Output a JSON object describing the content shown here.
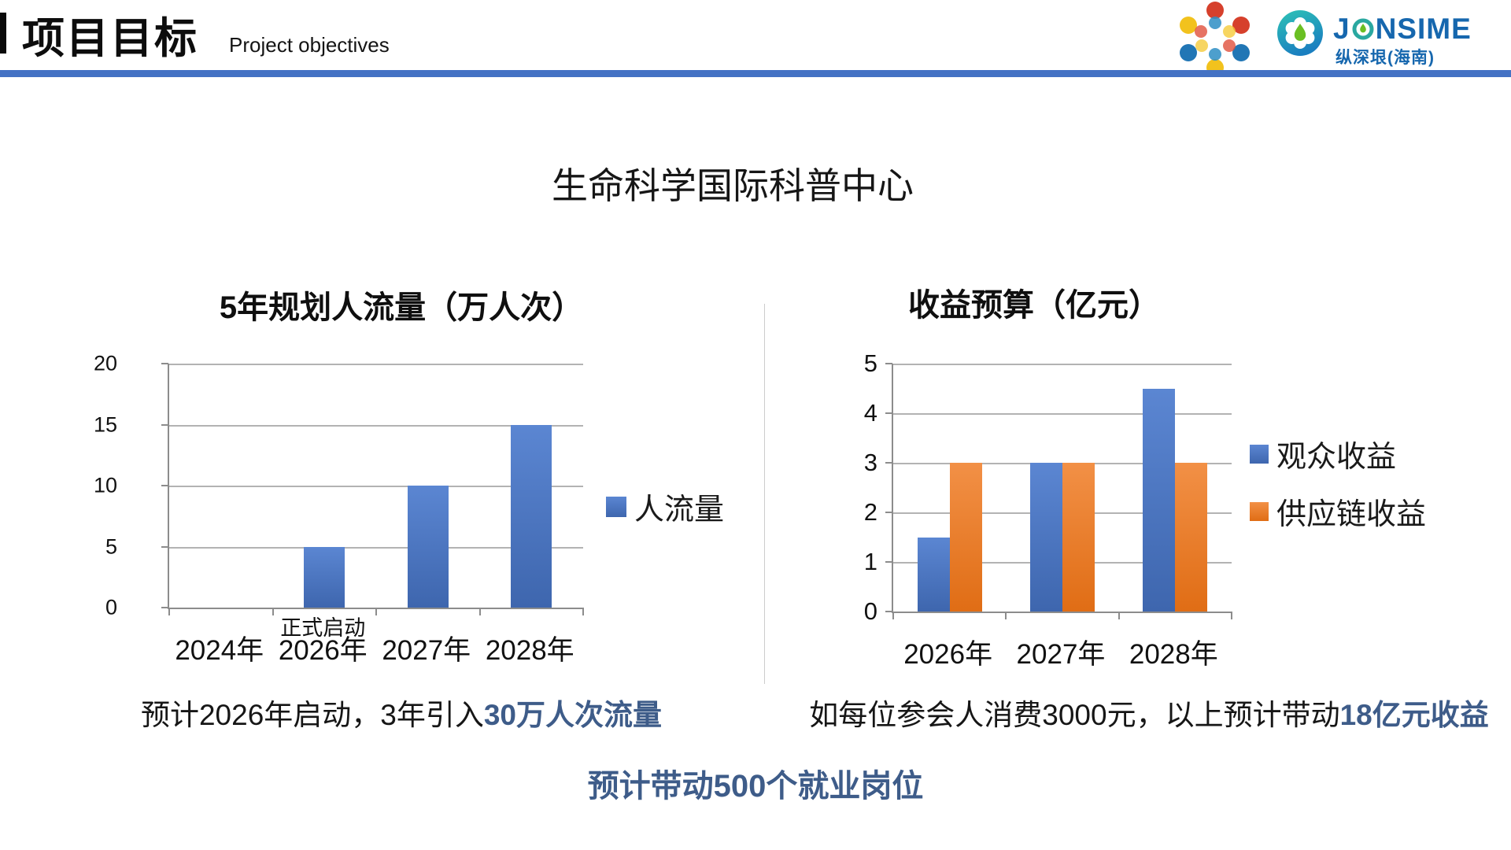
{
  "header": {
    "title": "项目目标",
    "subtitle": "Project objectives"
  },
  "logo": {
    "brand_prefix": "J",
    "brand_suffix": "NSIME",
    "brand_full": "JONSIME",
    "subtext": "纵深垠(海南)"
  },
  "main_title": "生命科学国际科普中心",
  "chart_data": [
    {
      "type": "bar",
      "title": "5年规划人流量（万人次）",
      "categories": [
        "2024年",
        "2026年",
        "2027年",
        "2028年"
      ],
      "series": [
        {
          "name": "人流量",
          "values": [
            0,
            5,
            10,
            15
          ],
          "color": "#4472C4"
        }
      ],
      "ylim": [
        0,
        20
      ],
      "yticks": [
        0,
        5,
        10,
        15,
        20
      ],
      "grid": true,
      "legend_position": "right",
      "annotation": {
        "text": "正式启动",
        "category": "2026年"
      }
    },
    {
      "type": "bar",
      "title": "收益预算（亿元）",
      "categories": [
        "2026年",
        "2027年",
        "2028年"
      ],
      "series": [
        {
          "name": "观众收益",
          "values": [
            1.5,
            3,
            4.5
          ],
          "color": "#4472C4"
        },
        {
          "name": "供应链收益",
          "values": [
            3,
            3,
            3
          ],
          "color": "#ED7D31"
        }
      ],
      "ylim": [
        0,
        5
      ],
      "yticks": [
        0,
        1,
        2,
        3,
        4,
        5
      ],
      "grid": true,
      "legend_position": "right"
    }
  ],
  "captions": {
    "left": {
      "plain": "预计2026年启动，3年引入",
      "highlight": "30万人次流量"
    },
    "right": {
      "plain": "如每位参会人消费3000元，以上预计带动",
      "highlight": "18亿元收益"
    },
    "bottom": "预计带动500个就业岗位"
  },
  "colors": {
    "header_rule": "#4472C4",
    "bar_blue": "#4472C4",
    "bar_orange": "#ED7D31",
    "highlight_text": "#3E5C89",
    "logo_blue": "#1667AE",
    "logo_teal": "#2EC4B6",
    "logo_green": "#6ABF23"
  }
}
